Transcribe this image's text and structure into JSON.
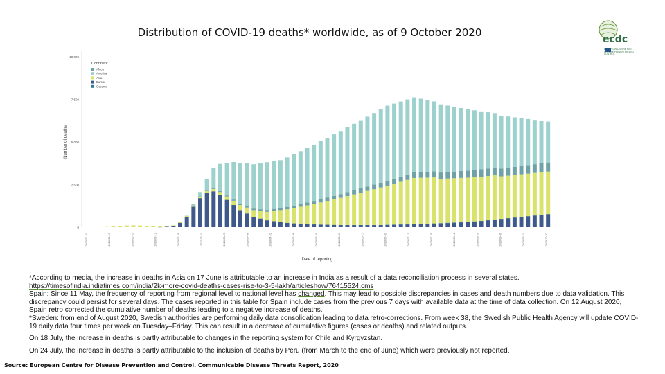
{
  "header": {
    "title": "Distribution of COVID-19 deaths* worldwide, as of 9 October 2020"
  },
  "logo": {
    "text": "ecdc",
    "subtext": "EUROPEAN CENTRE FOR DISEASE PREVENTION AND CONTROL"
  },
  "colors": {
    "Africa": "#6fa2a6",
    "America": "#9cd1cd",
    "Asia": "#d9e26a",
    "Europe": "#3f5a8a",
    "Oceania": "#2e7d8c"
  },
  "chart_data": {
    "type": "bar",
    "stacked": true,
    "ylabel": "Number of deaths",
    "xlabel": "Date of reporting",
    "ylim": [
      0,
      10000
    ],
    "yticks": [
      "0",
      "2 500",
      "5 000",
      "7 500",
      "10 000"
    ],
    "legend_title": "Continent",
    "legend_position": "top-left",
    "x_tick_labels": [
      "2020-01-01",
      "2020-01-15",
      "2020-01-29",
      "2020-02-12",
      "2020-02-26",
      "2020-03-11",
      "2020-03-25",
      "2020-04-08",
      "2020-04-22",
      "2020-05-06",
      "2020-05-20",
      "2020-06-03",
      "2020-06-17",
      "2020-07-01",
      "2020-07-15",
      "2020-07-29",
      "2020-08-12",
      "2020-08-26",
      "2020-09-09",
      "2020-09-23",
      "2020-10-07"
    ],
    "series": [
      {
        "name": "Africa",
        "values": [
          0,
          0,
          0,
          0,
          0,
          0,
          0,
          0,
          0,
          0,
          0,
          0,
          0,
          0,
          0,
          0,
          10,
          20,
          30,
          40,
          50,
          60,
          70,
          80,
          90,
          90,
          100,
          110,
          120,
          130,
          140,
          150,
          160,
          170,
          180,
          190,
          200,
          210,
          220,
          230,
          240,
          250,
          260,
          270,
          280,
          290,
          300,
          310,
          320,
          330,
          340,
          350,
          360,
          370,
          380,
          390,
          400,
          410,
          420,
          430,
          440,
          450,
          460,
          470,
          480,
          490,
          500,
          510,
          520,
          530
        ]
      },
      {
        "name": "America",
        "values": [
          0,
          0,
          0,
          0,
          0,
          0,
          0,
          0,
          0,
          0,
          0,
          0,
          0,
          0,
          5,
          20,
          80,
          250,
          700,
          1200,
          1600,
          1900,
          2200,
          2400,
          2500,
          2600,
          2700,
          2800,
          2800,
          2800,
          2900,
          3000,
          3100,
          3200,
          3300,
          3400,
          3500,
          3600,
          3700,
          3800,
          3900,
          4000,
          4100,
          4200,
          4300,
          4400,
          4400,
          4400,
          4400,
          4400,
          4300,
          4200,
          4100,
          4000,
          3900,
          3800,
          3700,
          3600,
          3500,
          3400,
          3300,
          3200,
          3100,
          3000,
          2900,
          2800,
          2700,
          2600,
          2500,
          2400
        ]
      },
      {
        "name": "Asia",
        "values": [
          0,
          0,
          0,
          10,
          40,
          60,
          100,
          110,
          100,
          80,
          60,
          40,
          30,
          30,
          40,
          50,
          70,
          90,
          110,
          140,
          160,
          200,
          250,
          300,
          350,
          400,
          450,
          500,
          600,
          700,
          800,
          900,
          1000,
          1100,
          1200,
          1300,
          1400,
          1500,
          1600,
          1700,
          1800,
          1900,
          2000,
          2100,
          2200,
          2300,
          2400,
          2500,
          2600,
          2700,
          2700,
          2700,
          2700,
          2600,
          2600,
          2600,
          2600,
          2600,
          2600,
          2600,
          2600,
          2600,
          2500,
          2500,
          2500,
          2500,
          2500,
          2500,
          2500,
          2500
        ]
      },
      {
        "name": "Europe",
        "values": [
          0,
          0,
          0,
          0,
          0,
          0,
          0,
          0,
          0,
          0,
          0,
          5,
          20,
          80,
          250,
          600,
          1200,
          1700,
          2000,
          2100,
          1900,
          1600,
          1300,
          1000,
          800,
          600,
          500,
          400,
          350,
          300,
          250,
          220,
          200,
          180,
          160,
          150,
          140,
          130,
          120,
          120,
          120,
          120,
          120,
          120,
          120,
          130,
          140,
          150,
          160,
          170,
          180,
          190,
          200,
          220,
          240,
          260,
          280,
          300,
          330,
          360,
          400,
          440,
          480,
          520,
          560,
          600,
          640,
          680,
          720,
          760
        ]
      },
      {
        "name": "Oceania",
        "values": [
          0,
          0,
          0,
          0,
          0,
          0,
          0,
          0,
          0,
          0,
          0,
          0,
          0,
          0,
          1,
          1,
          2,
          2,
          2,
          2,
          1,
          1,
          1,
          1,
          1,
          1,
          1,
          1,
          1,
          1,
          1,
          1,
          1,
          1,
          1,
          1,
          1,
          2,
          3,
          4,
          5,
          6,
          7,
          8,
          9,
          10,
          12,
          14,
          16,
          18,
          20,
          20,
          20,
          18,
          16,
          14,
          12,
          10,
          8,
          6,
          5,
          5,
          5,
          5,
          5,
          5,
          5,
          5,
          5,
          5
        ]
      }
    ]
  },
  "notes": {
    "n1": "*According to media, the increase in deaths in Asia on 17 June is attributable to an increase in India as a result of a data reconciliation process in several states.",
    "n1_link": "https://timesofindia.indiatimes.com/india/2k-more-covid-deaths-cases-rise-to-3-5-lakh/articleshow/76415524.cms",
    "n2_a": "Spain: Since 11 May, the frequency of reporting from regional level to national level has ",
    "n2_link": "changed",
    "n2_b": ". This may lead to possible discrepancies in cases and death numbers due to data validation. This discrepancy could persist for several days. The cases reported in this table for Spain include cases from the previous 7 days with available data at the time of data collection. On 12 August 2020, Spain retro corrected the cumulative number of deaths leading to a negative increase of deaths.",
    "n3": "*Sweden: from end of August 2020, Swedish authorities are performing daily data consolidation leading to data retro-corrections. From week 38, the Swedish Public Health Agency will update COVID-19 daily data four times per week on Tuesday–Friday. This can result in a decrease of cumulative figures (cases or deaths) and related outputs.",
    "n4_a": "On 18 July, the increase in deaths is partly attributable to changes in the reporting system for ",
    "n4_link1": "Chile",
    "n4_and": " and ",
    "n4_link2": "Kyrgyzstan",
    "n4_end": ".",
    "n5": "On 24 July, the increase in deaths is partly attributable to the inclusion of deaths by Peru (from March to the end of June) which were previously not reported."
  },
  "source": "Source: European Centre for Disease Prevention and Control. Communicable Disease Threats Report, 2020"
}
